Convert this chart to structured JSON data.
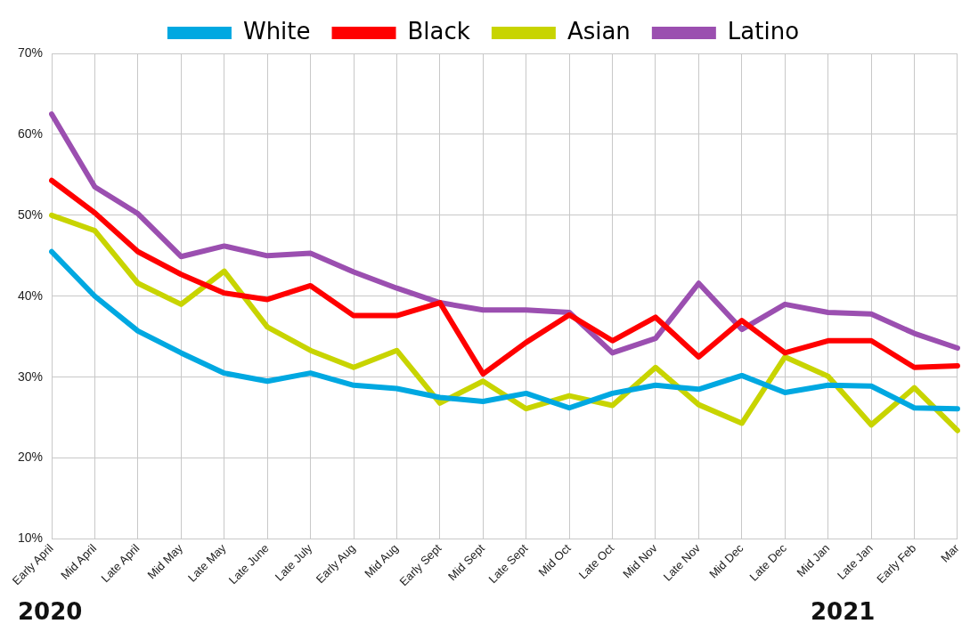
{
  "chart_data": {
    "type": "line",
    "categories": [
      "Early April",
      "Mid April",
      "Late April",
      "Mid May",
      "Late May",
      "Late June",
      "Late July",
      "Early Aug",
      "Mid Aug",
      "Early Sept",
      "Mid Sept",
      "Late Sept",
      "Mid Oct",
      "Late Oct",
      "Mid Nov",
      "Late Nov",
      "Mid Dec",
      "Late Dec",
      "Mid Jan",
      "Late Jan",
      "Early Feb",
      "Mar"
    ],
    "series": [
      {
        "name": "White",
        "color": "#00a8e1",
        "values": [
          45.5,
          40,
          35.7,
          33,
          30.5,
          29.5,
          30.5,
          29,
          28.6,
          27.5,
          27,
          28,
          26.2,
          28,
          29,
          28.5,
          30.2,
          28.1,
          29,
          28.9,
          26.2,
          26.1
        ]
      },
      {
        "name": "Black",
        "color": "#ff0000",
        "values": [
          54.3,
          50.3,
          45.5,
          42.7,
          40.4,
          39.6,
          41.3,
          37.6,
          37.6,
          39.2,
          30.4,
          34.3,
          37.7,
          34.5,
          37.4,
          32.5,
          37,
          33,
          34.5,
          34.5,
          31.2,
          31.4
        ]
      },
      {
        "name": "Asian",
        "color": "#c8d400",
        "values": [
          50,
          48.1,
          41.6,
          39,
          43.1,
          36.2,
          33.3,
          31.2,
          33.3,
          26.8,
          29.5,
          26.1,
          27.7,
          26.5,
          31.2,
          26.6,
          24.3,
          32.5,
          30.1,
          24.1,
          28.7,
          23.4
        ]
      },
      {
        "name": "Latino",
        "color": "#9b4fb0",
        "values": [
          62.5,
          53.5,
          50.2,
          44.9,
          46.2,
          45,
          45.3,
          43,
          41,
          39.2,
          38.3,
          38.3,
          38,
          33,
          34.8,
          41.6,
          35.9,
          39,
          38,
          37.8,
          35.4,
          33.6
        ]
      }
    ],
    "ylim": [
      10,
      70
    ],
    "yticks": [
      {
        "value": 10,
        "label": "10%"
      },
      {
        "value": 20,
        "label": "20%"
      },
      {
        "value": 30,
        "label": "30%"
      },
      {
        "value": 40,
        "label": "40%"
      },
      {
        "value": 50,
        "label": "50%"
      },
      {
        "value": 60,
        "label": "60%"
      },
      {
        "value": 70,
        "label": "70%"
      }
    ],
    "grid": true,
    "legend": "top",
    "marker": "none",
    "line_style": "solid",
    "annotations": [
      "2020",
      "2021"
    ]
  }
}
